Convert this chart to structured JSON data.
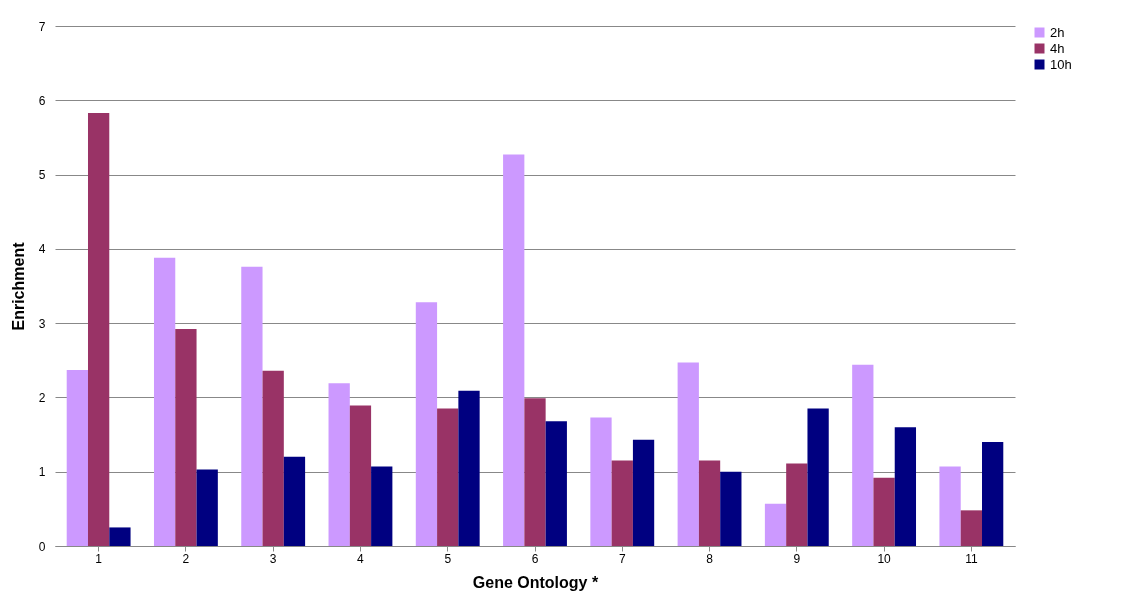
{
  "chart_data": {
    "type": "bar",
    "xlabel": "Gene Ontology *",
    "ylabel": "Enrichment",
    "categories": [
      "1",
      "2",
      "3",
      "4",
      "5",
      "6",
      "7",
      "8",
      "9",
      "10",
      "11"
    ],
    "series": [
      {
        "name": "2h",
        "color": "#cc99ff",
        "values": [
          2.37,
          3.88,
          3.76,
          2.19,
          3.28,
          5.27,
          1.73,
          2.47,
          0.57,
          2.44,
          1.07
        ]
      },
      {
        "name": "4h",
        "color": "#993366",
        "values": [
          5.83,
          2.92,
          2.36,
          1.89,
          1.85,
          1.99,
          1.15,
          1.15,
          1.11,
          0.92,
          0.48
        ]
      },
      {
        "name": "10h",
        "color": "#000080",
        "values": [
          0.25,
          1.03,
          1.2,
          1.07,
          2.09,
          1.68,
          1.43,
          1.0,
          1.85,
          1.6,
          1.4
        ]
      }
    ],
    "ylim": [
      0,
      7
    ],
    "yticks": [
      0,
      1,
      2,
      3,
      4,
      5,
      6,
      7
    ],
    "grid": "y",
    "legend": "right"
  }
}
